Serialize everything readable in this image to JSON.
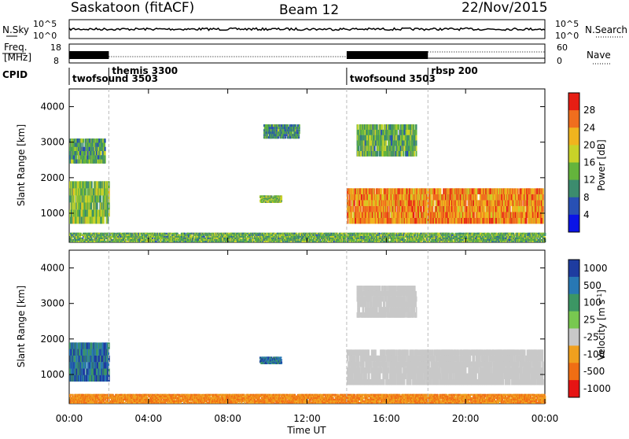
{
  "header": {
    "station": "Saskatoon (fitACF)",
    "beam": "Beam 12",
    "date": "22/Nov/2015"
  },
  "noise_panel": {
    "left_label": "N.Sky",
    "left_ticks": [
      "10^5",
      "10^0"
    ],
    "right_label": "N.Search",
    "right_ticks": [
      "10^5",
      "10^0"
    ]
  },
  "freq_panel": {
    "left_label_line1": "Freq.",
    "left_label_line2": "[MHz]",
    "left_ticks": [
      "18",
      "8"
    ],
    "right_label": "Nave",
    "right_ticks": [
      "60",
      "0"
    ]
  },
  "cpid": {
    "label": "CPID",
    "modes": [
      {
        "name": "twofsound 3503",
        "start_hour": 0.0
      },
      {
        "name": "themis 3300",
        "start_hour": 2.0
      },
      {
        "name": "twofsound 3503",
        "start_hour": 14.0
      },
      {
        "name": "rbsp 200",
        "start_hour": 18.1
      }
    ]
  },
  "x_axis": {
    "title": "Time UT",
    "ticks": [
      "00:00",
      "04:00",
      "08:00",
      "12:00",
      "16:00",
      "20:00",
      "00:00"
    ],
    "range_hours": [
      0,
      24
    ]
  },
  "chart_data": [
    {
      "type": "heatmap",
      "panel": "power",
      "ylabel": "Slant Range [km]",
      "yticks": [
        "1000",
        "2000",
        "3000",
        "4000"
      ],
      "ylim": [
        180,
        4500
      ],
      "colorbar_label": "Power [dB]",
      "colorbar_ticks": [
        "4",
        "8",
        "12",
        "16",
        "20",
        "24",
        "28"
      ],
      "colorbar_range": [
        0,
        30
      ],
      "colors": [
        "#0a14e6",
        "#2850b4",
        "#3c8c6e",
        "#64b43c",
        "#c8d228",
        "#f0b41e",
        "#f06e1e",
        "#e61e14"
      ],
      "regions": [
        {
          "t": [
            0.0,
            2.0
          ],
          "r": [
            700,
            1900
          ],
          "level": 0.45
        },
        {
          "t": [
            0.0,
            1.8
          ],
          "r": [
            2400,
            3100
          ],
          "level": 0.35
        },
        {
          "t": [
            9.6,
            10.7
          ],
          "r": [
            1300,
            1500
          ],
          "level": 0.45
        },
        {
          "t": [
            9.8,
            11.6
          ],
          "r": [
            3100,
            3500
          ],
          "level": 0.3
        },
        {
          "t": [
            14.0,
            23.9
          ],
          "r": [
            700,
            1700
          ],
          "level": 0.8
        },
        {
          "t": [
            14.5,
            17.5
          ],
          "r": [
            2600,
            3500
          ],
          "level": 0.4
        },
        {
          "t": [
            0.0,
            24.0
          ],
          "r": [
            180,
            450
          ],
          "level": 0.4
        }
      ]
    },
    {
      "type": "heatmap",
      "panel": "velocity",
      "ylabel": "Slant Range [km]",
      "yticks": [
        "1000",
        "2000",
        "3000",
        "4000"
      ],
      "ylim": [
        180,
        4500
      ],
      "colorbar_label": "Velocity [m s^-1]",
      "colorbar_ticks": [
        "1000",
        "500",
        "100",
        "25",
        "-25",
        "-100",
        "-500",
        "-1000"
      ],
      "colors": [
        "#1e3ca0",
        "#2878b4",
        "#3c9664",
        "#78c850",
        "#c8c8c8",
        "#f0a01e",
        "#f06e14",
        "#e61414"
      ],
      "regions": [
        {
          "t": [
            0.0,
            2.0
          ],
          "r": [
            800,
            1900
          ],
          "v": 300
        },
        {
          "t": [
            9.6,
            10.7
          ],
          "r": [
            1300,
            1500
          ],
          "v": 150
        },
        {
          "t": [
            14.0,
            23.9
          ],
          "r": [
            700,
            1700
          ],
          "v": 0
        },
        {
          "t": [
            14.5,
            17.5
          ],
          "r": [
            2600,
            3500
          ],
          "v": 0
        },
        {
          "t": [
            0.0,
            24.0
          ],
          "r": [
            180,
            450
          ],
          "v": -150
        }
      ]
    }
  ]
}
